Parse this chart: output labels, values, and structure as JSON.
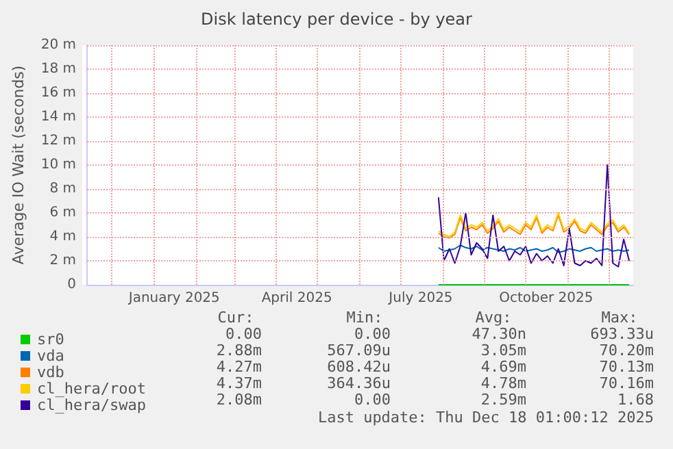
{
  "chart_data": {
    "type": "line",
    "title": "Disk latency per device - by year",
    "ylabel": "Average IO Wait (seconds)",
    "x": [
      "2025-07-29",
      "2025-08-02",
      "2025-08-06",
      "2025-08-10",
      "2025-08-14",
      "2025-08-18",
      "2025-08-22",
      "2025-08-26",
      "2025-08-30",
      "2025-09-03",
      "2025-09-07",
      "2025-09-11",
      "2025-09-15",
      "2025-09-19",
      "2025-09-23",
      "2025-09-27",
      "2025-10-01",
      "2025-10-05",
      "2025-10-09",
      "2025-10-13",
      "2025-10-17",
      "2025-10-21",
      "2025-10-25",
      "2025-10-29",
      "2025-11-02",
      "2025-11-06",
      "2025-11-10",
      "2025-11-14",
      "2025-11-18",
      "2025-11-22",
      "2025-11-26",
      "2025-11-30",
      "2025-12-04",
      "2025-12-08",
      "2025-12-12",
      "2025-12-16"
    ],
    "series": [
      {
        "name": "sr0",
        "color": "#00cc00",
        "values": [
          0,
          0,
          0,
          0,
          0,
          0,
          0,
          0,
          0,
          0,
          0,
          0,
          0,
          0,
          0,
          0,
          0,
          0,
          0,
          0,
          0,
          0,
          0,
          0,
          0,
          0,
          0,
          0,
          0,
          0,
          0,
          0,
          0,
          0,
          0,
          0
        ]
      },
      {
        "name": "vda",
        "color": "#0066b3",
        "values": [
          3.1,
          2.8,
          2.9,
          3.0,
          3.3,
          3.1,
          3.0,
          3.2,
          2.9,
          3.1,
          3.0,
          2.9,
          2.8,
          3.0,
          2.9,
          3.1,
          2.8,
          2.9,
          3.0,
          2.8,
          2.9,
          3.1,
          2.7,
          2.8,
          3.0,
          2.9,
          2.8,
          3.0,
          3.1,
          2.8,
          2.9,
          3.0,
          2.8,
          2.9,
          2.8,
          2.9
        ]
      },
      {
        "name": "vdb",
        "color": "#ff8000",
        "values": [
          4.3,
          4.0,
          3.9,
          4.2,
          5.6,
          4.5,
          4.8,
          4.6,
          5.0,
          4.3,
          4.7,
          5.3,
          4.4,
          4.8,
          4.5,
          4.2,
          5.0,
          4.6,
          5.6,
          4.3,
          4.8,
          4.5,
          5.8,
          4.4,
          4.7,
          5.3,
          4.5,
          4.3,
          5.0,
          4.6,
          4.2,
          4.9,
          5.2,
          4.4,
          4.8,
          4.2
        ]
      },
      {
        "name": "cl_hera/root",
        "color": "#ffcc00",
        "values": [
          4.5,
          4.2,
          4.0,
          4.4,
          5.8,
          4.7,
          5.0,
          4.8,
          5.2,
          4.5,
          4.9,
          5.5,
          4.6,
          5.0,
          4.7,
          4.4,
          5.2,
          4.8,
          5.8,
          4.5,
          5.0,
          4.7,
          6.0,
          4.6,
          4.9,
          5.5,
          4.7,
          4.5,
          5.2,
          4.8,
          4.4,
          5.1,
          5.4,
          4.6,
          5.0,
          4.3
        ]
      },
      {
        "name": "cl_hera/swap",
        "color": "#330099",
        "values": [
          7.3,
          2.0,
          3.0,
          1.8,
          3.2,
          6.0,
          2.5,
          3.5,
          3.0,
          2.2,
          5.8,
          2.8,
          3.2,
          2.0,
          2.8,
          2.5,
          3.2,
          1.8,
          2.6,
          2.0,
          2.4,
          1.8,
          3.0,
          1.6,
          4.7,
          1.8,
          1.6,
          2.0,
          1.8,
          2.2,
          1.6,
          10.0,
          1.8,
          1.5,
          3.8,
          2.0
        ]
      }
    ],
    "xlim": [
      "2024-11-13",
      "2025-12-19"
    ],
    "xticks": [
      {
        "value": "2024-12-01",
        "label": null
      },
      {
        "value": "2025-01-01",
        "label": null
      },
      {
        "value": "2025-01-16",
        "label": "January 2025"
      },
      {
        "value": "2025-02-01",
        "label": null
      },
      {
        "value": "2025-03-01",
        "label": null
      },
      {
        "value": "2025-04-01",
        "label": null
      },
      {
        "value": "2025-04-16",
        "label": "April 2025"
      },
      {
        "value": "2025-05-01",
        "label": null
      },
      {
        "value": "2025-06-01",
        "label": null
      },
      {
        "value": "2025-07-01",
        "label": null
      },
      {
        "value": "2025-07-16",
        "label": "July 2025"
      },
      {
        "value": "2025-08-01",
        "label": null
      },
      {
        "value": "2025-09-01",
        "label": null
      },
      {
        "value": "2025-10-01",
        "label": null
      },
      {
        "value": "2025-10-16",
        "label": "October 2025"
      },
      {
        "value": "2025-11-01",
        "label": null
      },
      {
        "value": "2025-12-01",
        "label": null
      }
    ],
    "ylim": [
      0,
      20
    ],
    "yticks": [
      0,
      {
        "value": 2,
        "label": "2 m"
      },
      {
        "value": 4,
        "label": "4 m"
      },
      {
        "value": 6,
        "label": "6 m"
      },
      {
        "value": 8,
        "label": "8 m"
      },
      {
        "value": 10,
        "label": "10 m"
      },
      {
        "value": 12,
        "label": "12 m"
      },
      {
        "value": 14,
        "label": "14 m"
      },
      {
        "value": 16,
        "label": "16 m"
      },
      {
        "value": 18,
        "label": "18 m"
      },
      {
        "value": 20,
        "label": "20 m"
      }
    ],
    "grid": true,
    "legend": "bottom left",
    "marker": "none",
    "line_style": "solid",
    "annotations": [
      "Cur:",
      "Min:",
      "Avg:",
      "Max:",
      "0.00",
      "0.00",
      "47.30n",
      "693.33u",
      "2.88m",
      "567.09u",
      "3.05m",
      "70.20m",
      "4.27m",
      "608.42u",
      "4.69m",
      "70.13m",
      "4.37m",
      "364.36u",
      "4.78m",
      "70.16m",
      "2.08m",
      "0.00",
      "2.59m",
      "1.68",
      "Last update: Thu Dec 18 01:00:12 2025"
    ]
  }
}
